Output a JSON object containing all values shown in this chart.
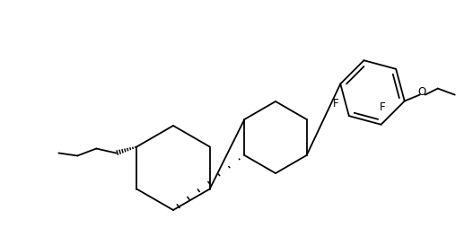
{
  "bg_color": "#ffffff",
  "line_color": "#000000",
  "lw": 1.3,
  "figsize": [
    5.27,
    2.54
  ],
  "dpi": 100,
  "xlim": [
    0.0,
    5.27
  ],
  "ylim": [
    0.0,
    2.54
  ]
}
